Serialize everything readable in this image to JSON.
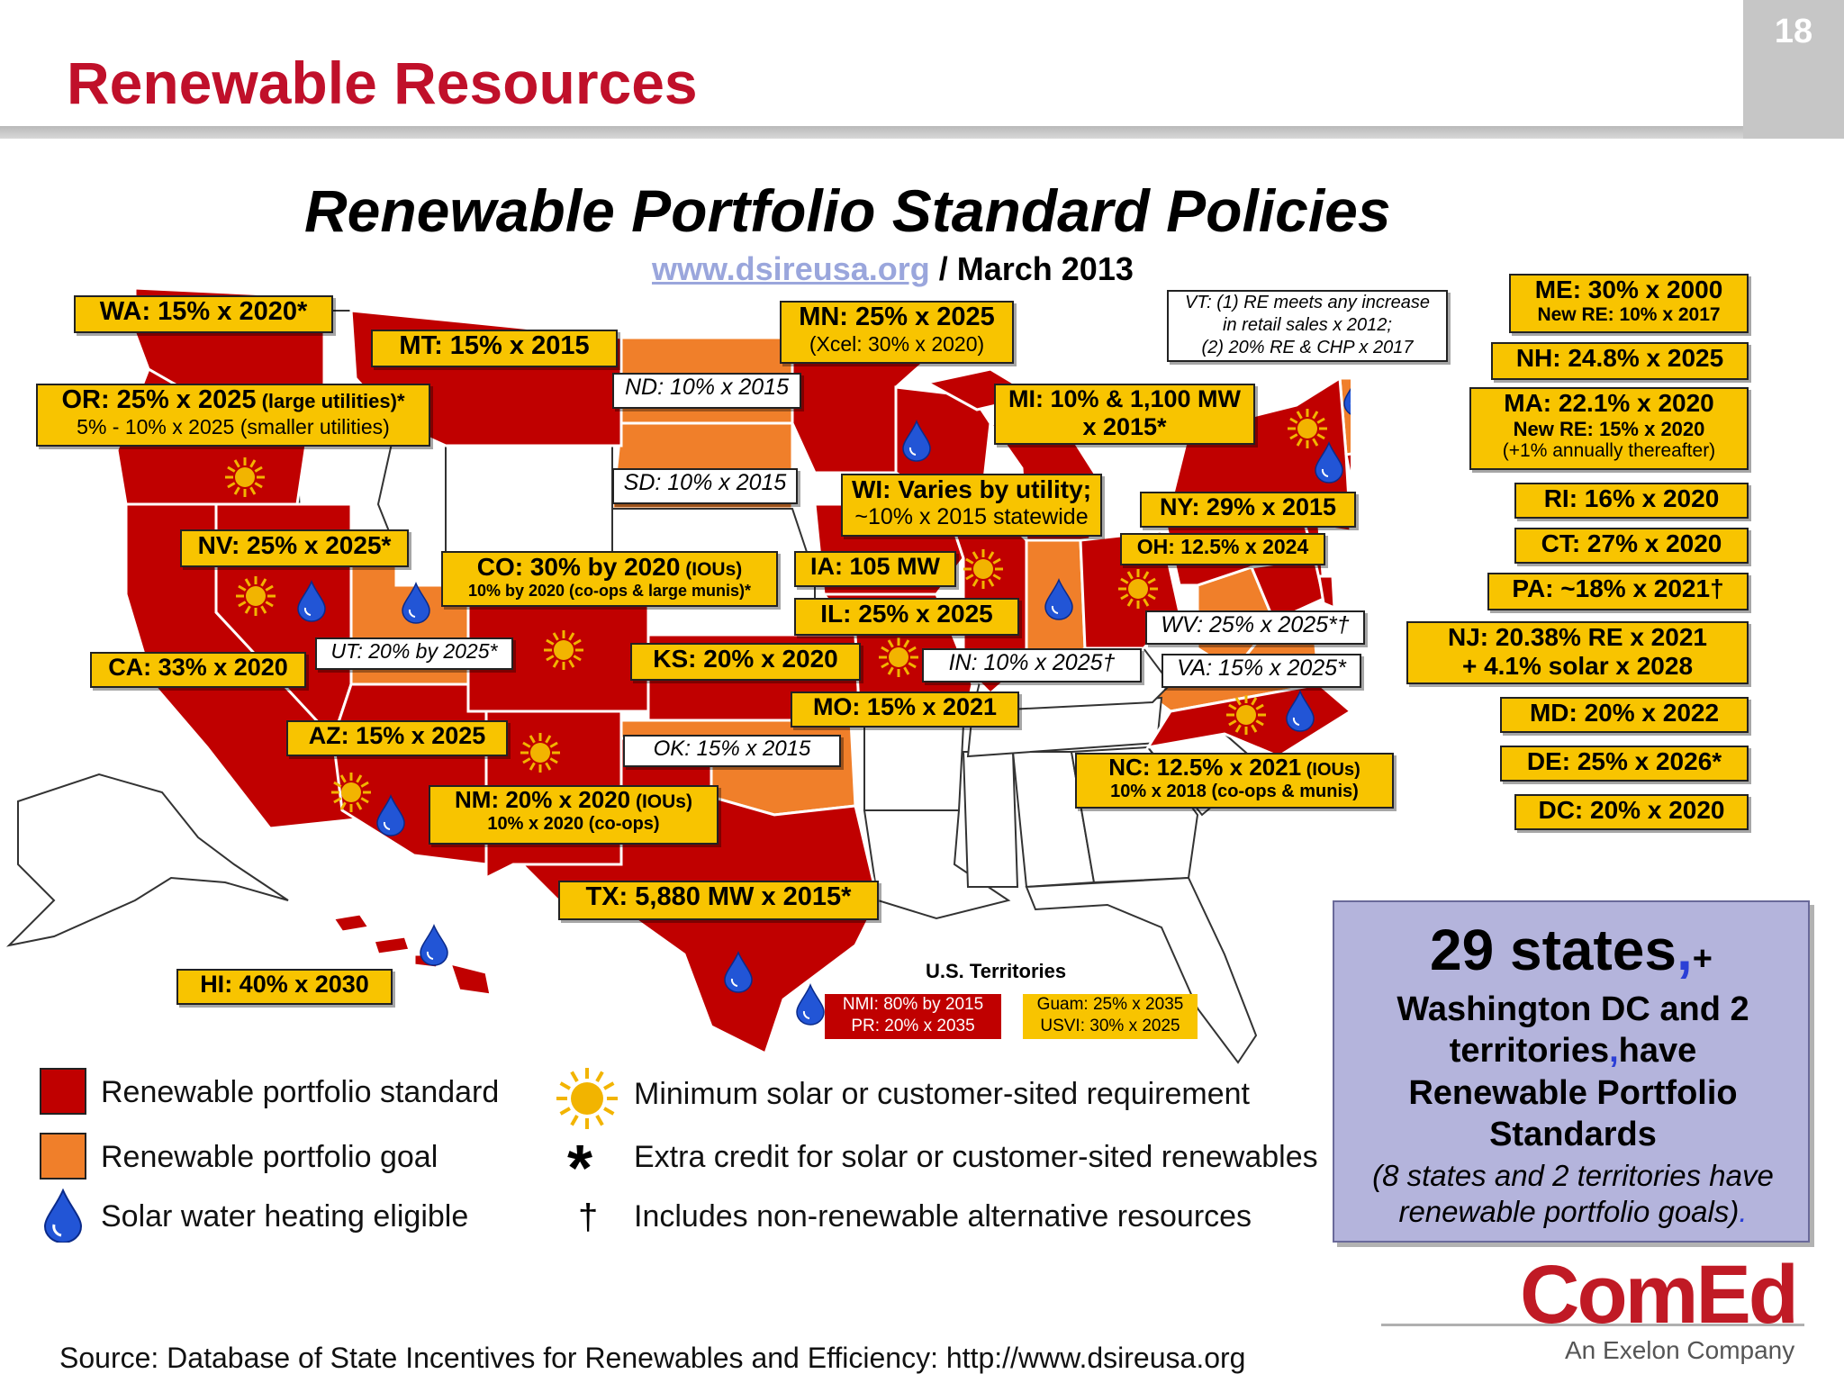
{
  "slide": {
    "title": "Renewable Resources",
    "page_number": "18"
  },
  "map": {
    "title": "Renewable Portfolio Standard Policies",
    "source_link": "www.dsireusa.org",
    "source_date": " / March 2013"
  },
  "labels": {
    "wa": "WA: 15% x 2020*",
    "mt": "MT: 15% x 2015",
    "mn": "MN: 25% x 2025",
    "mn_sub": "(Xcel: 30% x 2020)",
    "or": "OR: 25% x 2025",
    "or_note": " (large utilities)*",
    "or_sub": "5% - 10% x 2025 (smaller utilities)",
    "nd": "ND: 10% x 2015",
    "sd": "SD: 10% x 2015",
    "mi": "MI: 10% & 1,100 MW",
    "mi_sub": "x 2015*",
    "wi": "WI: Varies by utility;",
    "wi_sub": "~10% x 2015 statewide",
    "ny": "NY: 29% x 2015",
    "oh": "OH: 12.5% x 2024",
    "nv": "NV: 25% x 2025*",
    "co": "CO: 30% by 2020",
    "co_note": " (IOUs)",
    "co_sub": "10% by 2020 (co-ops & large munis)*",
    "ia": "IA: 105 MW",
    "il": "IL: 25% x 2025",
    "ca": "CA: 33% x 2020",
    "ut": "UT: 20% by 2025*",
    "ks": "KS: 20% x 2020",
    "in": "IN: 10% x 2025†",
    "wv": "WV: 25% x 2025*†",
    "va": "VA: 15% x 2025*",
    "mo": "MO: 15% x 2021",
    "az": "AZ: 15% x 2025",
    "ok": "OK: 15% x 2015",
    "nc": "NC: 12.5% x 2021",
    "nc_note": " (IOUs)",
    "nc_sub": "10% x 2018 (co-ops & munis)",
    "nm": "NM: 20% x 2020",
    "nm_note": " (IOUs)",
    "nm_sub": "10% x 2020 (co-ops)",
    "tx": "TX: 5,880 MW x 2015*",
    "hi": "HI: 40% x 2030",
    "vt_1": "VT: (1) RE meets any increase",
    "vt_2": "in retail sales x 2012;",
    "vt_3": "(2) 20% RE & CHP x 2017",
    "dc_marker": "DC",
    "me": "ME: 30% x 2000",
    "me_sub": "New RE: 10% x 2017",
    "nh": "NH: 24.8% x 2025",
    "ma": "MA: 22.1% x 2020",
    "ma_sub1": "New RE:  15% x 2020",
    "ma_sub2": "(+1% annually thereafter)",
    "ri": "RI: 16% x 2020",
    "ct": "CT: 27% x 2020",
    "pa": "PA: ~18% x 2021†",
    "nj_1": "NJ: 20.38% RE x 2021",
    "nj_2": "+ 4.1% solar x 2028",
    "md": "MD: 20% x 2022",
    "de": "DE: 25% x 2026*",
    "dc": "DC: 20% x 2020"
  },
  "territories": {
    "title": "U.S. Territories",
    "red_1": "NMI: 80% by 2015",
    "red_2": "PR: 20% x 2035",
    "gold_1": "Guam: 25% x 2035",
    "gold_2": "USVI: 30% x 2025"
  },
  "legend": {
    "rps": "Renewable portfolio standard",
    "goal": "Renewable portfolio goal",
    "swh": "Solar water heating eligible",
    "solar": "Minimum solar or customer-sited requirement",
    "credit": "Extra credit for solar or customer-sited renewables",
    "nonrenew": "Includes non-renewable alternative resources",
    "asterisk": "*",
    "dagger": "†"
  },
  "summary": {
    "big": "29 states",
    "big_comma": ",",
    "big_plus": "+",
    "line1": "Washington DC and 2",
    "line2a": "territories",
    "line2_comma": ",",
    "line2b": "have",
    "line3": "Renewable Portfolio",
    "line4": "Standards",
    "note1": "(8 states and 2 territories have",
    "note2": "renewable portfolio goals)",
    "note_dot": "."
  },
  "footer": {
    "source": "Source: Database of State Incentives for Renewables and Efficiency: http://www.dsireusa.org"
  },
  "logo": {
    "name": "ComEd",
    "tagline": "An Exelon Company"
  },
  "colors": {
    "rps": "#c00000",
    "goal": "#f07f2a",
    "none": "#ffffff",
    "label": "#f8c400",
    "title_red": "#c0102a",
    "summary_bg": "#b4b4dc",
    "drop": "#2255d6",
    "sun": "#f2b400"
  },
  "icons": {
    "solar": "sun-icon",
    "water": "water-drop-icon"
  }
}
